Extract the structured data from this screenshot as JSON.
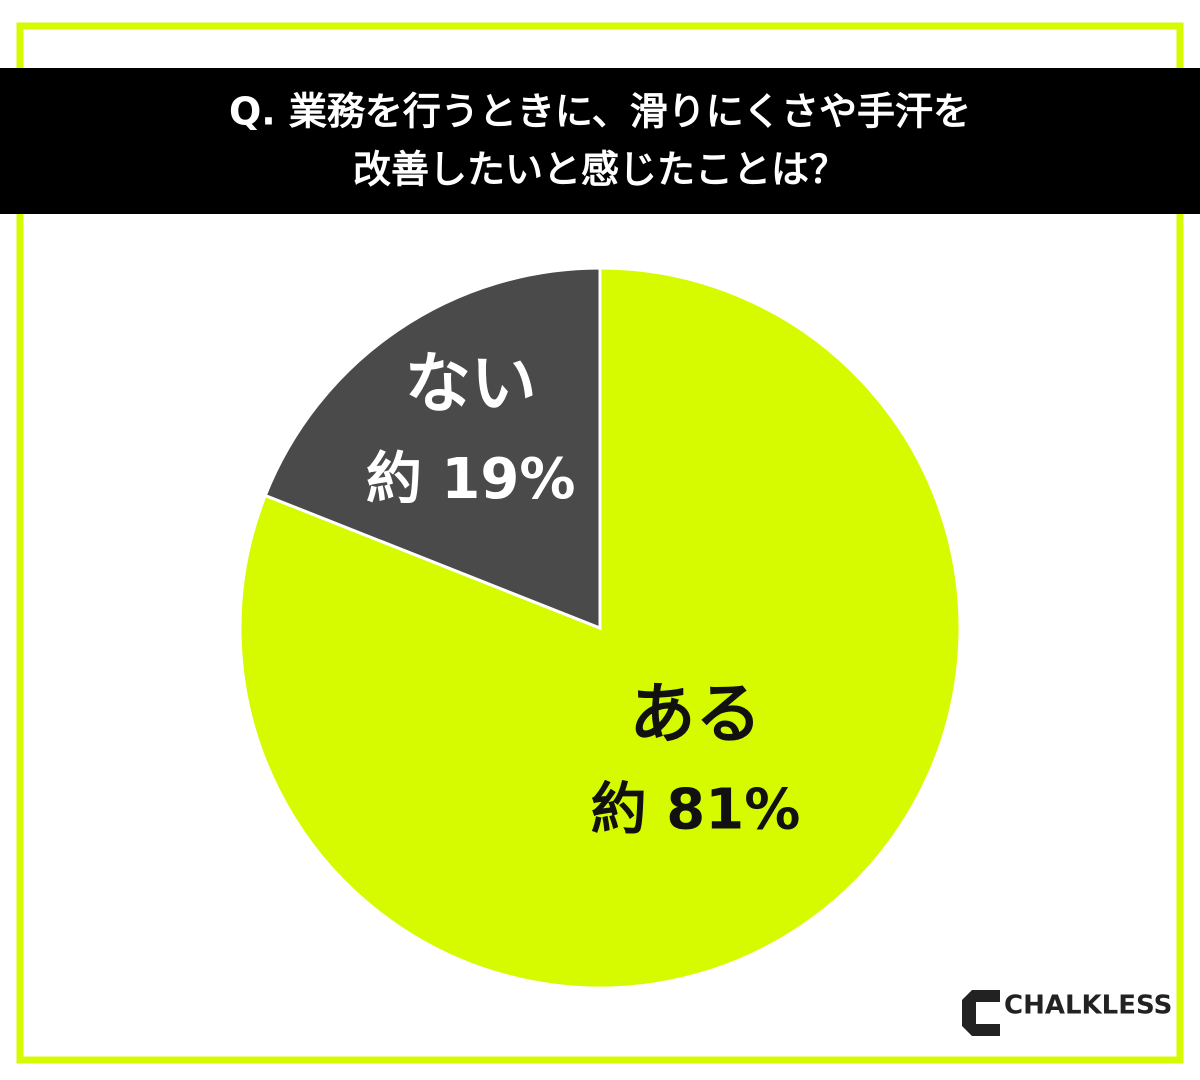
{
  "chart_data": {
    "type": "pie",
    "title": [
      "Q. 業務を行うときに、滑りにくさや手汗を",
      "改善したいと感じたことは？"
    ],
    "categories": [
      "ある",
      "ない"
    ],
    "values": [
      81,
      19
    ],
    "value_labels": [
      "約 81%",
      "約 19%"
    ],
    "colors": [
      "#d6fb00",
      "#4a4a4a"
    ],
    "label_colors": [
      "#111111",
      "#ffffff"
    ]
  },
  "brand": "CHALKLESS"
}
